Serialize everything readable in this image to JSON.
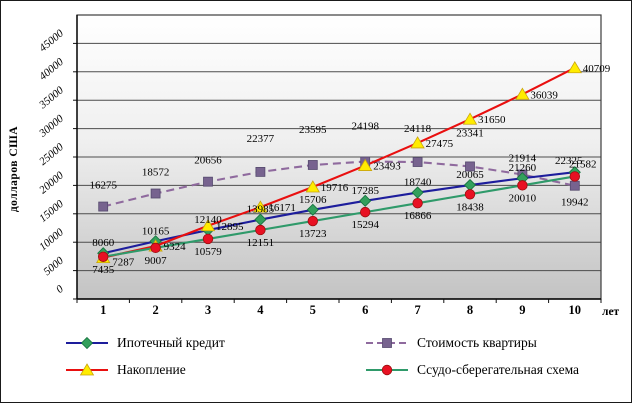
{
  "chart_data": {
    "type": "line",
    "title": "",
    "ylabel": "долларов США",
    "xlabel": "лет",
    "x": [
      1,
      2,
      3,
      4,
      5,
      6,
      7,
      8,
      9,
      10
    ],
    "ylim": [
      0,
      50000
    ],
    "ytick_step": 5000,
    "ytick_labels": [
      "0",
      "5000",
      "10000",
      "15000",
      "20000",
      "25000",
      "30000",
      "35000",
      "40000",
      "45000"
    ],
    "grid": true,
    "legend_position": "bottom",
    "plot_background": [
      "#ffffff",
      "#c3c3c3"
    ],
    "series": [
      {
        "name": "Ипотечный кредит",
        "slug": "mortgage-credit",
        "line_color": "#1d1d9c",
        "line_style": "solid",
        "marker": "diamond",
        "marker_color": "#33a05c",
        "values": [
          8060,
          10165,
          12140,
          13985,
          15706,
          17285,
          18740,
          20065,
          21260,
          22325
        ]
      },
      {
        "name": "Стоимость квартиры",
        "slug": "apartment-cost",
        "line_color": "#8f6a9e",
        "line_style": "dashed",
        "marker": "square",
        "marker_color": "#77638f",
        "values": [
          16275,
          18572,
          20656,
          22377,
          23595,
          24198,
          24118,
          23341,
          21914,
          19942
        ]
      },
      {
        "name": "Накопление",
        "slug": "accumulation",
        "line_color": "#e90f0f",
        "line_style": "solid",
        "marker": "triangle",
        "marker_color": "#ffec00",
        "values": [
          7287,
          9324,
          12895,
          16171,
          19716,
          23493,
          27475,
          31650,
          36039,
          40709
        ]
      },
      {
        "name": "Ссудо-сберегательная схема",
        "slug": "loan-savings-scheme",
        "line_color": "#2f9a6a",
        "line_style": "solid",
        "marker": "circle",
        "marker_color": "#e81123",
        "values": [
          7435,
          9007,
          10579,
          12151,
          13723,
          15294,
          16866,
          18438,
          20010,
          21582
        ]
      }
    ]
  }
}
